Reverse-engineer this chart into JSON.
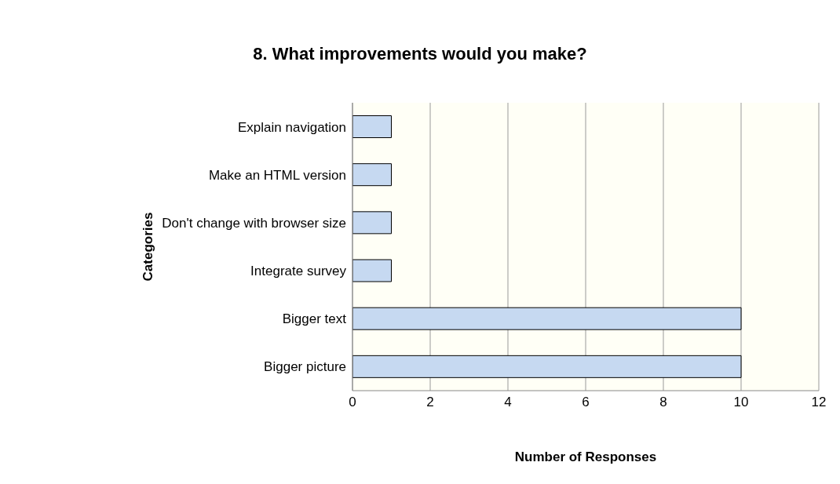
{
  "chart_data": {
    "type": "bar",
    "orientation": "horizontal",
    "title": "8.  What improvements would you make?",
    "xlabel": "Number of Responses",
    "ylabel": "Categories",
    "categories": [
      "Explain navigation",
      "Make an HTML version",
      "Don't change with browser size",
      "Integrate survey",
      "Bigger text",
      "Bigger picture"
    ],
    "values": [
      1,
      1,
      1,
      1,
      10,
      10
    ],
    "color": "#c6d9f1",
    "xlim": [
      0,
      12
    ],
    "xticks": [
      0,
      2,
      4,
      6,
      8,
      10,
      12
    ],
    "grid": "x"
  }
}
